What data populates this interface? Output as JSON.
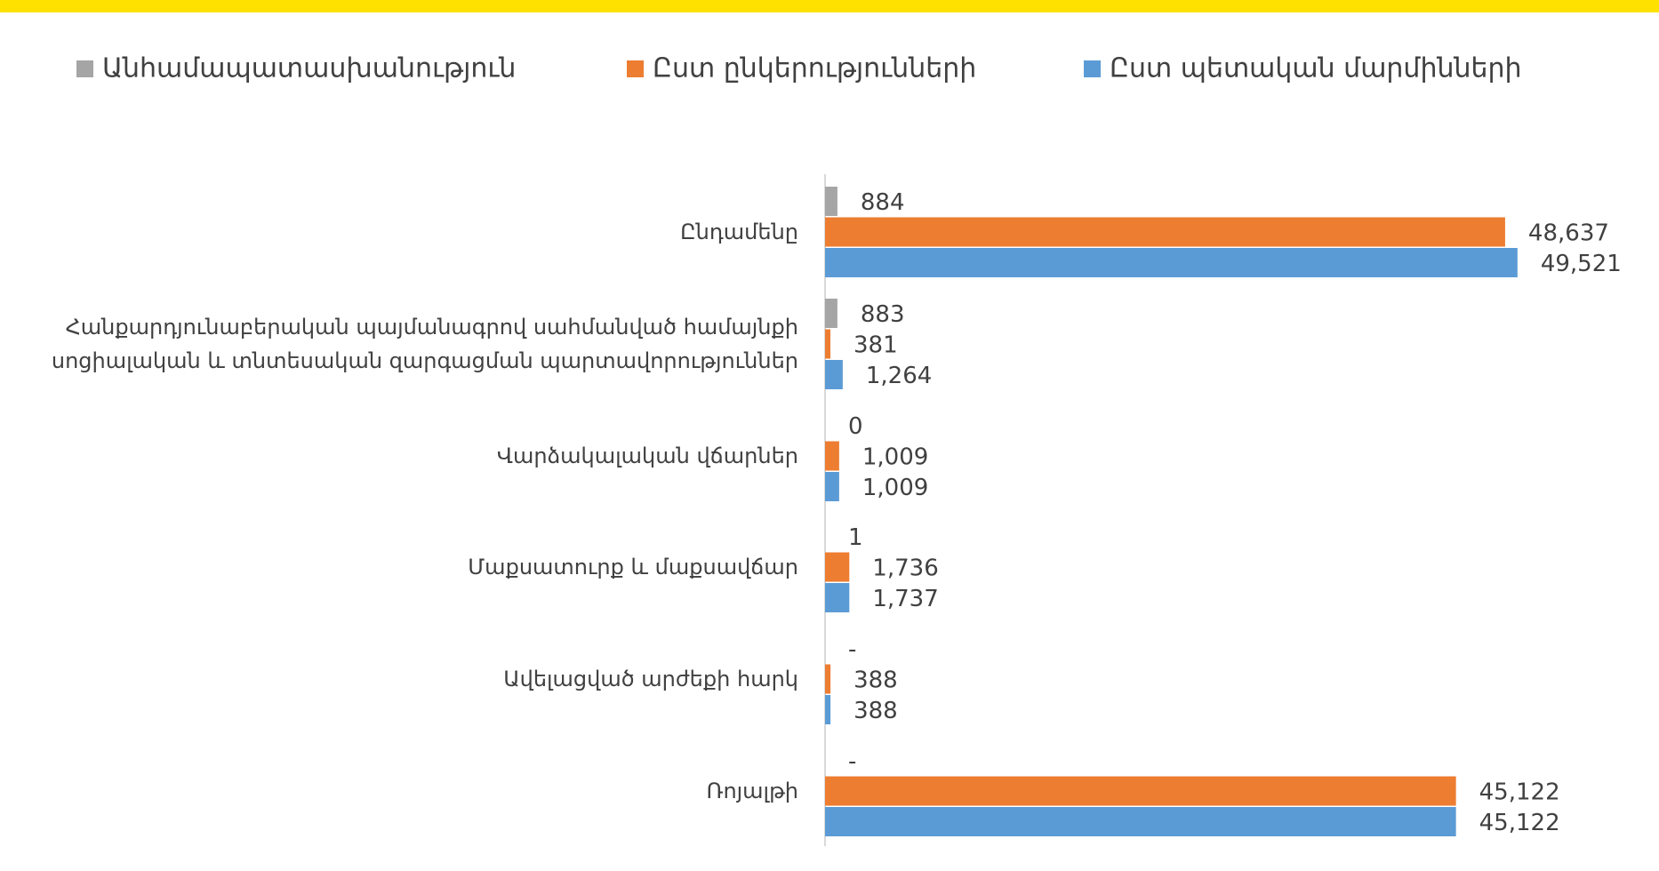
{
  "chart_data": {
    "type": "hbar",
    "categories": [
      "Ընդամենը",
      "Հանքարդյունաբերական պայմանագրով սահմանված համայնքի\nսոցիալական և տնտեսական զարգացման պարտավորություններ",
      "Վարձակալական վճարներ",
      "Մաքսատուրք և մաքսավճար",
      "Ավելացված արժեքի հարկ",
      "Ռոյալթի"
    ],
    "series": [
      {
        "name": "Անհամապատասխանություն",
        "color": "#a5a5a5",
        "values": [
          884,
          883,
          0,
          1,
          0,
          0
        ],
        "value_labels": [
          "884",
          "883",
          "0",
          "1",
          "-",
          "-"
        ]
      },
      {
        "name": "Ըստ ընկերությունների",
        "color": "#ed7d31",
        "values": [
          48637,
          381,
          1009,
          1736,
          388,
          45122
        ],
        "value_labels": [
          "48,637",
          "381",
          "1,009",
          "1,736",
          "388",
          "45,122"
        ]
      },
      {
        "name": "Ըստ պետական մարմինների",
        "color": "#5b9bd5",
        "values": [
          49521,
          1264,
          1009,
          1737,
          388,
          45122
        ],
        "value_labels": [
          "49,521",
          "1,264",
          "1,009",
          "1,737",
          "388",
          "45,122"
        ]
      }
    ],
    "xlim": [
      0,
      55000
    ]
  }
}
